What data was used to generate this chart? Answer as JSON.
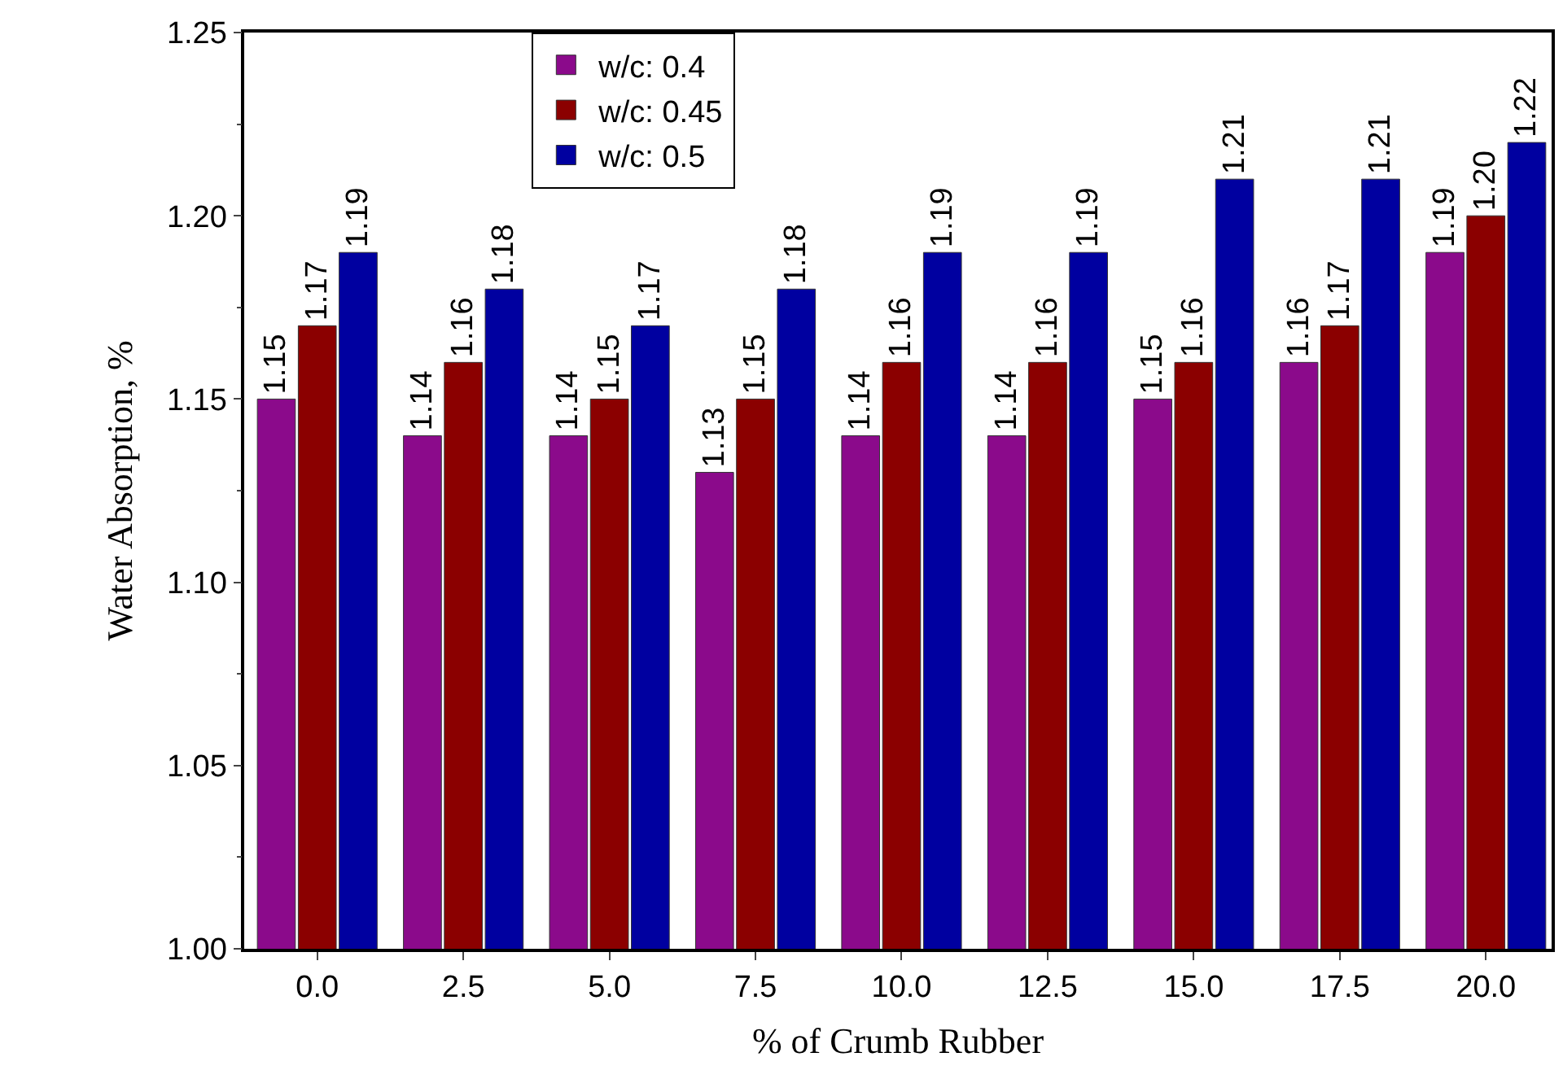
{
  "chart_data": {
    "type": "bar",
    "xlabel": "% of Crumb Rubber",
    "ylabel": "Water Absorption, %",
    "categories": [
      "0.0",
      "2.5",
      "5.0",
      "7.5",
      "10.0",
      "12.5",
      "15.0",
      "17.5",
      "20.0"
    ],
    "series": [
      {
        "name": "w/c: 0.4",
        "color": "#8b0a8b",
        "values": [
          1.15,
          1.14,
          1.14,
          1.13,
          1.14,
          1.14,
          1.15,
          1.16,
          1.19
        ],
        "value_labels": [
          "1.15",
          "1.14",
          "1.14",
          "1.13",
          "1.14",
          "1.14",
          "1.15",
          "1.16",
          "1.19"
        ]
      },
      {
        "name": "w/c: 0.45",
        "color": "#8b0000",
        "values": [
          1.17,
          1.16,
          1.15,
          1.15,
          1.16,
          1.16,
          1.16,
          1.17,
          1.2
        ],
        "value_labels": [
          "1.17",
          "1.16",
          "1.15",
          "1.15",
          "1.16",
          "1.16",
          "1.16",
          "1.17",
          "1.20"
        ]
      },
      {
        "name": "w/c: 0.5",
        "color": "#0000a0",
        "values": [
          1.19,
          1.18,
          1.17,
          1.18,
          1.19,
          1.19,
          1.21,
          1.21,
          1.22
        ],
        "value_labels": [
          "1.19",
          "1.18",
          "1.17",
          "1.18",
          "1.19",
          "1.19",
          "1.21",
          "1.21",
          "1.22"
        ]
      }
    ],
    "ylim": [
      1.0,
      1.25
    ],
    "yticks": [
      "1.00",
      "1.05",
      "1.10",
      "1.15",
      "1.20",
      "1.25"
    ],
    "legend": "top left"
  }
}
